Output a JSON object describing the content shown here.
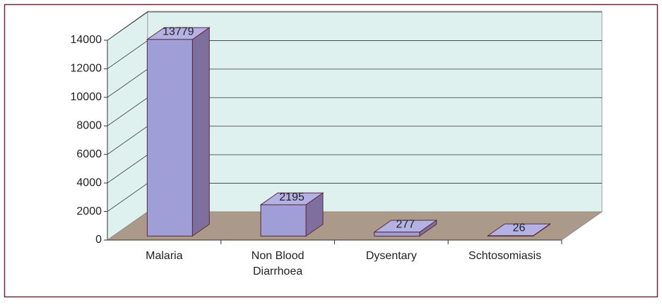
{
  "chart_data": {
    "type": "bar3d",
    "categories": [
      "Malaria",
      "Non Blood Diarrhoea",
      "Dysentary",
      "Schtosomiasis"
    ],
    "values": [
      13779,
      2195,
      277,
      26
    ],
    "color": "#a09ed6",
    "ylim": [
      0,
      14000
    ],
    "yticks": [
      0,
      2000,
      4000,
      6000,
      8000,
      10000,
      12000,
      14000
    ],
    "grid": true
  }
}
